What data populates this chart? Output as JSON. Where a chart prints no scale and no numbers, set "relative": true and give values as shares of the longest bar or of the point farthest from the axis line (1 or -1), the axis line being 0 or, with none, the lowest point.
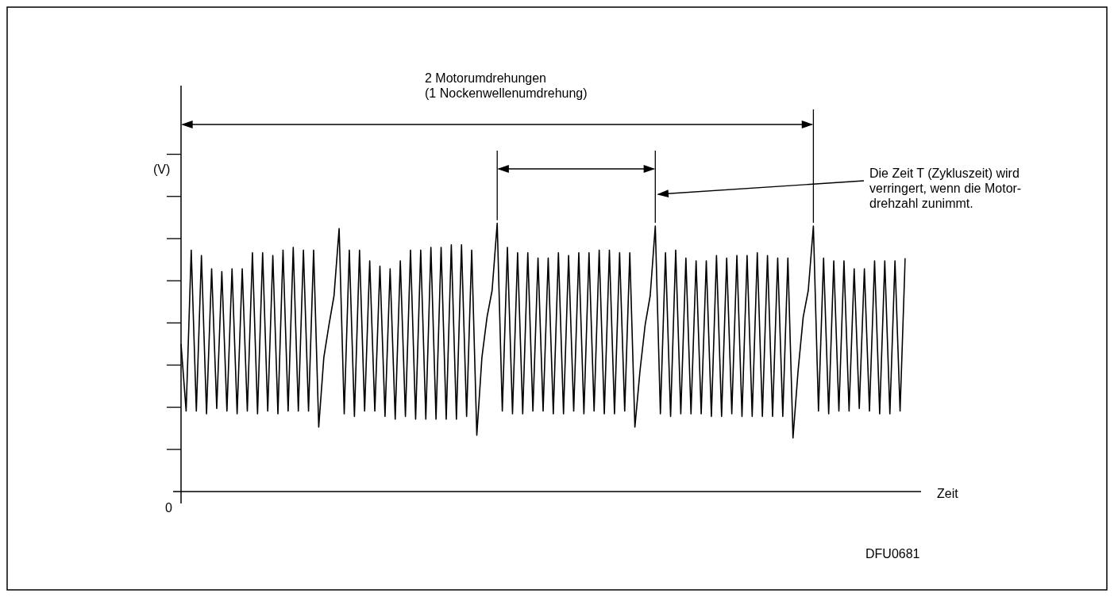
{
  "chart_data": {
    "type": "line",
    "relative": true,
    "xlabel": "Zeit",
    "ylabel": "(V)",
    "annotations": [
      "2 Motorumdrehungen\n(1 Nockenwellenumdrehung)",
      "Die Zeit T (Zykluszeit) wird\nverringert, wenn die Motor-\ndrehzahl zunimmt.",
      "DFU0681",
      "0"
    ],
    "categories": [
      null,
      null,
      null,
      null,
      null,
      null,
      null,
      null,
      null,
      null,
      null,
      null,
      null,
      null,
      null,
      null,
      null,
      null,
      null,
      null,
      null,
      null,
      null,
      null,
      null,
      null,
      null,
      null,
      null,
      null,
      null,
      null,
      null,
      null,
      null,
      null,
      null,
      null,
      null,
      null,
      null,
      null,
      null,
      null,
      null,
      null,
      null,
      null,
      null,
      null,
      null,
      null,
      null,
      null,
      null,
      null,
      null,
      null,
      null,
      null,
      null,
      null,
      null,
      null,
      null,
      null,
      null,
      null,
      null,
      null,
      null,
      null,
      null,
      null,
      null,
      null,
      null,
      null,
      null,
      null,
      null,
      null,
      null,
      null,
      null,
      null,
      null,
      null,
      null,
      null,
      null,
      null,
      null,
      null,
      null,
      null,
      null,
      null,
      null,
      null,
      null,
      null,
      null,
      null,
      null,
      null,
      null,
      null,
      null,
      null,
      null,
      null,
      null,
      null,
      null,
      null,
      null,
      null,
      null,
      null,
      null,
      null,
      null,
      null,
      null,
      null,
      null,
      null,
      null,
      null,
      null,
      null,
      null,
      null,
      null,
      null,
      null,
      null,
      null,
      null,
      null,
      null,
      null
    ],
    "series": [
      {
        "color": "#000000",
        "values": [
          0.55,
          0.3,
          0.9,
          0.3,
          0.88,
          0.29,
          0.83,
          0.31,
          0.82,
          0.3,
          0.83,
          0.29,
          0.83,
          0.3,
          0.89,
          0.29,
          0.89,
          0.3,
          0.88,
          0.29,
          0.9,
          0.3,
          0.91,
          0.3,
          0.9,
          0.3,
          0.9,
          0.24,
          0.5,
          0.62,
          0.73,
          0.98,
          0.29,
          0.9,
          0.28,
          0.9,
          0.3,
          0.86,
          0.3,
          0.84,
          0.28,
          0.83,
          0.27,
          0.86,
          0.28,
          0.9,
          0.27,
          0.9,
          0.27,
          0.91,
          0.27,
          0.91,
          0.27,
          0.92,
          0.27,
          0.92,
          0.28,
          0.9,
          0.21,
          0.5,
          0.65,
          0.75,
          1.0,
          0.3,
          0.91,
          0.29,
          0.89,
          0.29,
          0.89,
          0.3,
          0.87,
          0.3,
          0.87,
          0.29,
          0.89,
          0.29,
          0.88,
          0.3,
          0.89,
          0.29,
          0.89,
          0.3,
          0.9,
          0.29,
          0.9,
          0.29,
          0.89,
          0.3,
          0.89,
          0.24,
          0.45,
          0.62,
          0.73,
          0.99,
          0.29,
          0.89,
          0.28,
          0.9,
          0.29,
          0.87,
          0.29,
          0.86,
          0.29,
          0.86,
          0.28,
          0.88,
          0.28,
          0.87,
          0.29,
          0.88,
          0.28,
          0.88,
          0.28,
          0.89,
          0.28,
          0.88,
          0.28,
          0.87,
          0.28,
          0.87,
          0.2,
          0.45,
          0.65,
          0.75,
          0.99,
          0.3,
          0.87,
          0.29,
          0.86,
          0.3,
          0.86,
          0.3,
          0.83,
          0.31,
          0.83,
          0.3,
          0.86,
          0.29,
          0.86,
          0.29,
          0.86,
          0.3,
          0.87
        ]
      }
    ]
  }
}
